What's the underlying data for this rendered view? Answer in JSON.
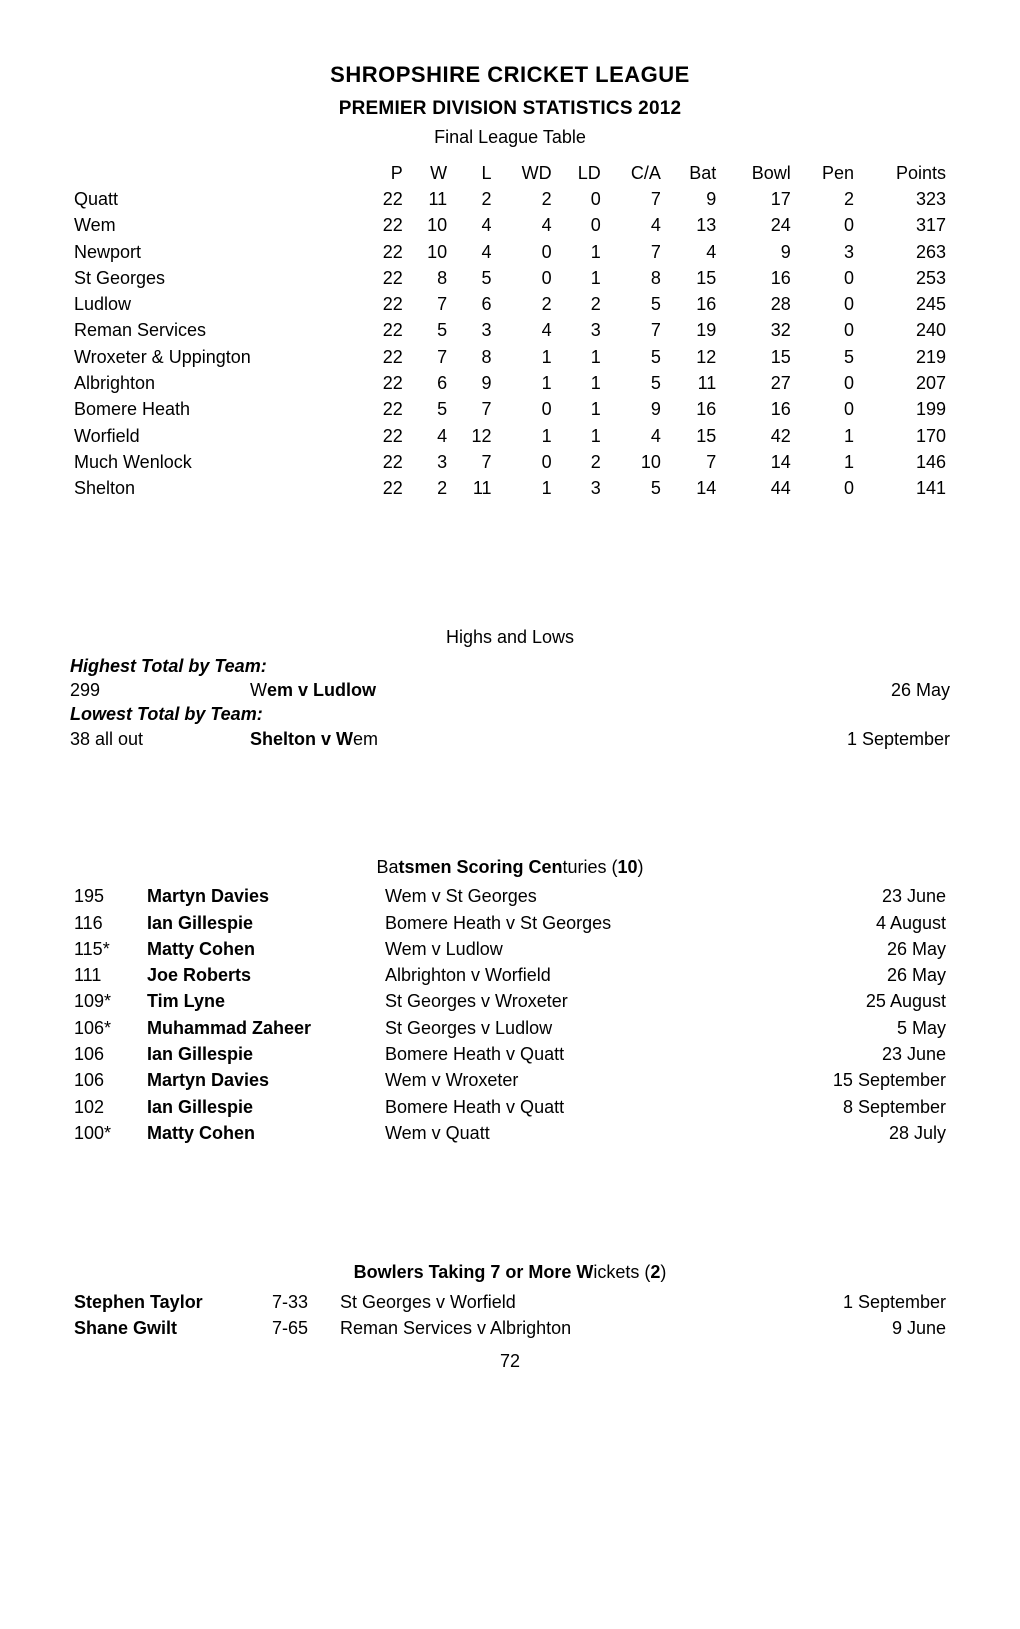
{
  "header": {
    "title": "SHROPSHIRE CRICKET LEAGUE",
    "subtitle": "PREMIER DIVISION STATISTICS 2012",
    "section": "Final League Table"
  },
  "league_table": {
    "columns": [
      "",
      "P",
      "W",
      "L",
      "WD",
      "LD",
      "C/A",
      "Bat",
      "Bowl",
      "Pen",
      "Points"
    ],
    "rows": [
      [
        "Quatt",
        "22",
        "11",
        "2",
        "2",
        "0",
        "7",
        "9",
        "17",
        "2",
        "323"
      ],
      [
        "Wem",
        "22",
        "10",
        "4",
        "4",
        "0",
        "4",
        "13",
        "24",
        "0",
        "317"
      ],
      [
        "Newport",
        "22",
        "10",
        "4",
        "0",
        "1",
        "7",
        "4",
        "9",
        "3",
        "263"
      ],
      [
        "St Georges",
        "22",
        "8",
        "5",
        "0",
        "1",
        "8",
        "15",
        "16",
        "0",
        "253"
      ],
      [
        "Ludlow",
        "22",
        "7",
        "6",
        "2",
        "2",
        "5",
        "16",
        "28",
        "0",
        "245"
      ],
      [
        "Reman Services",
        "22",
        "5",
        "3",
        "4",
        "3",
        "7",
        "19",
        "32",
        "0",
        "240"
      ],
      [
        "Wroxeter & Uppington",
        "22",
        "7",
        "8",
        "1",
        "1",
        "5",
        "12",
        "15",
        "5",
        "219"
      ],
      [
        "Albrighton",
        "22",
        "6",
        "9",
        "1",
        "1",
        "5",
        "11",
        "27",
        "0",
        "207"
      ],
      [
        "Bomere Heath",
        "22",
        "5",
        "7",
        "0",
        "1",
        "9",
        "16",
        "16",
        "0",
        "199"
      ],
      [
        "Worfield",
        "22",
        "4",
        "12",
        "1",
        "1",
        "4",
        "15",
        "42",
        "1",
        "170"
      ],
      [
        "Much Wenlock",
        "22",
        "3",
        "7",
        "0",
        "2",
        "10",
        "7",
        "14",
        "1",
        "146"
      ],
      [
        "Shelton",
        "22",
        "2",
        "11",
        "1",
        "3",
        "5",
        "14",
        "44",
        "0",
        "141"
      ]
    ]
  },
  "highs_lows": {
    "heading": "Highs and Lows",
    "highest_label": "Highest Total by Team:",
    "highest_score": "299",
    "highest_match_pre": "W",
    "highest_match_bold": "em v Ludlow",
    "highest_date": "26 May",
    "lowest_label": "Lowest Total by Team:",
    "lowest_score": "38 all out",
    "lowest_match_bold": "Shelton v W",
    "lowest_match_post": "em",
    "lowest_date": "1 September"
  },
  "centuries": {
    "heading_pre": "Ba",
    "heading_bold": "tsmen Scoring Cen",
    "heading_post": "turies (",
    "heading_num": "10",
    "heading_close": ")",
    "rows": [
      {
        "score": "195",
        "name": "Martyn Davies",
        "match": "Wem v St Georges",
        "date": "23 June"
      },
      {
        "score": "116",
        "name": "Ian Gillespie",
        "match": "Bomere Heath v St Georges",
        "date": "4 August"
      },
      {
        "score": "115*",
        "name": "Matty Cohen",
        "match": "Wem v Ludlow",
        "date": "26 May"
      },
      {
        "score": "111",
        "name": "Joe Roberts",
        "match": "Albrighton v Worfield",
        "date": "26 May"
      },
      {
        "score": "109*",
        "name": "Tim Lyne",
        "match": "St Georges v Wroxeter",
        "date": "25 August"
      },
      {
        "score": "106*",
        "name": "Muhammad Zaheer",
        "match": "St Georges v Ludlow",
        "date": "5 May"
      },
      {
        "score": "106",
        "name": "Ian Gillespie",
        "match": "Bomere Heath v Quatt",
        "date": "23 June"
      },
      {
        "score": "106",
        "name": "Martyn Davies",
        "match": "Wem v Wroxeter",
        "date": "15 September"
      },
      {
        "score": "102",
        "name": "Ian Gillespie",
        "match": "Bomere Heath v Quatt",
        "date": "8 September"
      },
      {
        "score": "100*",
        "name": "Matty Cohen",
        "match": "Wem v Quatt",
        "date": "28 July"
      }
    ]
  },
  "bowlers": {
    "heading_bold": "Bowlers Taking 7 or More W",
    "heading_post": "ickets (",
    "heading_num": "2",
    "heading_close": ")",
    "rows": [
      {
        "name": "Stephen Taylor",
        "fig": "7-33",
        "match": "St Georges v Worfield",
        "date": "1 September"
      },
      {
        "name": "Shane Gwilt",
        "fig": "7-65",
        "match": "Reman Services v Albrighton",
        "date": "9 June"
      }
    ]
  },
  "page_number": "72"
}
